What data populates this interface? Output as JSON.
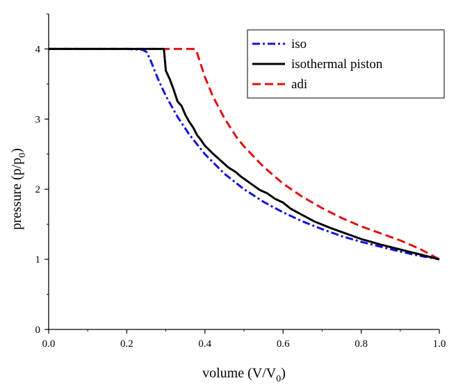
{
  "chart_data": {
    "type": "line",
    "xlabel": {
      "main": "volume (V/V",
      "sub": "0",
      "close": ")"
    },
    "ylabel": {
      "main": "pressure (p/p",
      "sub": "0",
      "close": ")"
    },
    "xlim": [
      0.0,
      1.0
    ],
    "ylim": [
      0,
      4.5
    ],
    "x_ticks": [
      "0.0",
      "0.2",
      "0.4",
      "0.6",
      "0.8",
      "1.0"
    ],
    "y_ticks": [
      "0",
      "1",
      "2",
      "3",
      "4"
    ],
    "legend": {
      "placement": "top-right"
    },
    "series": [
      {
        "name": "iso",
        "color": "#1010e0",
        "dash": "dash-dot",
        "x": [
          0.0,
          0.2,
          0.24,
          0.25,
          0.26,
          0.28,
          0.3,
          0.33,
          0.36,
          0.4,
          0.45,
          0.5,
          0.55,
          0.6,
          0.65,
          0.7,
          0.75,
          0.8,
          0.85,
          0.9,
          0.95,
          1.0
        ],
        "y": [
          4.0,
          4.0,
          3.99,
          3.96,
          3.85,
          3.57,
          3.33,
          3.03,
          2.78,
          2.5,
          2.22,
          2.0,
          1.82,
          1.67,
          1.54,
          1.43,
          1.33,
          1.25,
          1.18,
          1.11,
          1.05,
          1.0
        ]
      },
      {
        "name": "isothermal piston",
        "color": "#000000",
        "dash": "solid",
        "x": [
          0.0,
          0.295,
          0.3,
          0.31,
          0.32,
          0.33,
          0.34,
          0.35,
          0.36,
          0.37,
          0.38,
          0.39,
          0.4,
          0.42,
          0.44,
          0.46,
          0.48,
          0.49,
          0.5,
          0.52,
          0.54,
          0.56,
          0.58,
          0.6,
          0.62,
          0.65,
          0.68,
          0.72,
          0.76,
          0.8,
          0.85,
          0.9,
          0.95,
          1.0
        ],
        "y": [
          4.0,
          4.0,
          3.69,
          3.57,
          3.42,
          3.25,
          3.19,
          3.06,
          2.96,
          2.88,
          2.77,
          2.7,
          2.62,
          2.51,
          2.41,
          2.31,
          2.24,
          2.19,
          2.15,
          2.07,
          1.99,
          1.94,
          1.86,
          1.81,
          1.72,
          1.63,
          1.54,
          1.45,
          1.37,
          1.29,
          1.21,
          1.14,
          1.07,
          1.0
        ]
      },
      {
        "name": "adi",
        "color": "#e01010",
        "dash": "dashed",
        "x": [
          0.0,
          0.375,
          0.38,
          0.4,
          0.42,
          0.45,
          0.48,
          0.5,
          0.55,
          0.6,
          0.65,
          0.7,
          0.75,
          0.8,
          0.85,
          0.9,
          0.95,
          1.0
        ],
        "y": [
          4.0,
          4.0,
          3.94,
          3.6,
          3.33,
          3.01,
          2.75,
          2.61,
          2.32,
          2.08,
          1.89,
          1.73,
          1.59,
          1.47,
          1.37,
          1.27,
          1.15,
          1.0
        ]
      }
    ]
  }
}
